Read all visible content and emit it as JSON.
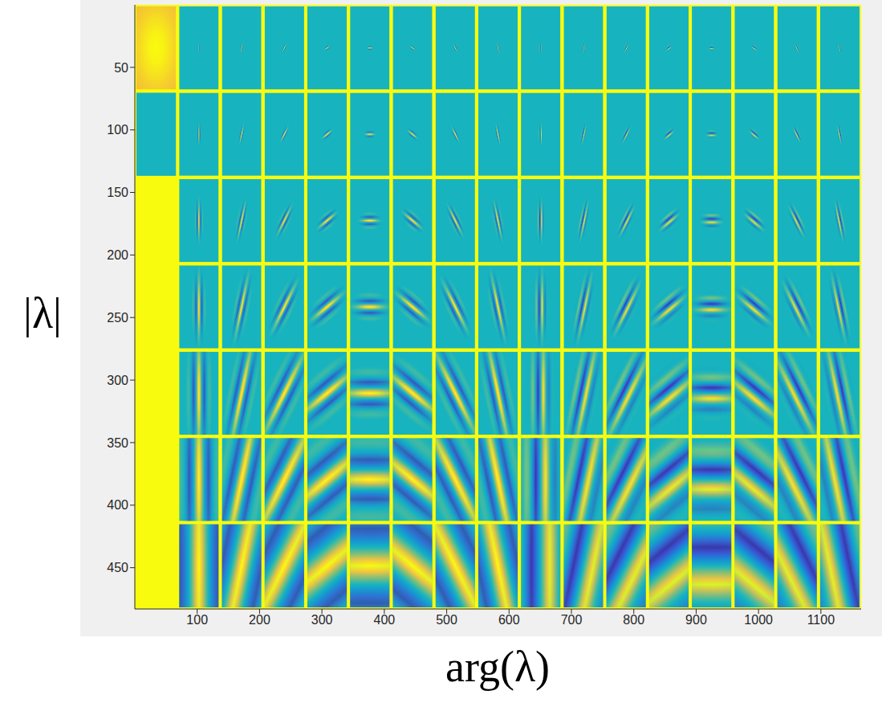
{
  "chart_data": {
    "type": "image",
    "xlabel": "arg(λ)",
    "ylabel": "|λ|",
    "xlim": [
      0,
      1164.5
    ],
    "ylim": [
      0,
      483
    ],
    "xticks": [
      100,
      200,
      300,
      400,
      500,
      600,
      700,
      800,
      900,
      1000,
      1100
    ],
    "yticks": [
      50,
      100,
      150,
      200,
      250,
      300,
      350,
      400,
      450
    ],
    "tile_size": [
      68.5,
      69
    ],
    "rows": [
      {
        "wavelength": 2.5,
        "sigma": [
          1,
          2
        ]
      },
      {
        "wavelength": 4,
        "sigma": [
          1.5,
          4
        ]
      },
      {
        "wavelength": 6,
        "sigma": [
          3,
          8
        ]
      },
      {
        "wavelength": 10,
        "sigma": [
          5,
          14
        ]
      },
      {
        "wavelength": 18,
        "sigma": [
          9,
          26
        ]
      },
      {
        "wavelength": 32,
        "sigma": [
          16,
          45
        ]
      },
      {
        "wavelength": 60,
        "sigma": [
          30,
          80
        ]
      }
    ],
    "columns": [
      {
        "angle": 0,
        "phase": 0
      },
      {
        "angle": 22.5,
        "phase": 0
      },
      {
        "angle": 45,
        "phase": 0
      },
      {
        "angle": 67.5,
        "phase": 0
      },
      {
        "angle": 90,
        "phase": 0
      },
      {
        "angle": 112.5,
        "phase": 0
      },
      {
        "angle": 135,
        "phase": 0
      },
      {
        "angle": 157.5,
        "phase": 0
      },
      {
        "angle": 0,
        "phase": 90
      },
      {
        "angle": 22.5,
        "phase": 90
      },
      {
        "angle": 45,
        "phase": 90
      },
      {
        "angle": 67.5,
        "phase": 90
      },
      {
        "angle": 90,
        "phase": 90
      },
      {
        "angle": 112.5,
        "phase": 90
      },
      {
        "angle": 135,
        "phase": 90
      },
      {
        "angle": 157.5,
        "phase": 90
      }
    ],
    "low_pass": {
      "row": 0,
      "col": 0,
      "sigma": [
        22,
        22
      ]
    },
    "blank": [
      {
        "row": 1,
        "col": 0
      }
    ]
  }
}
